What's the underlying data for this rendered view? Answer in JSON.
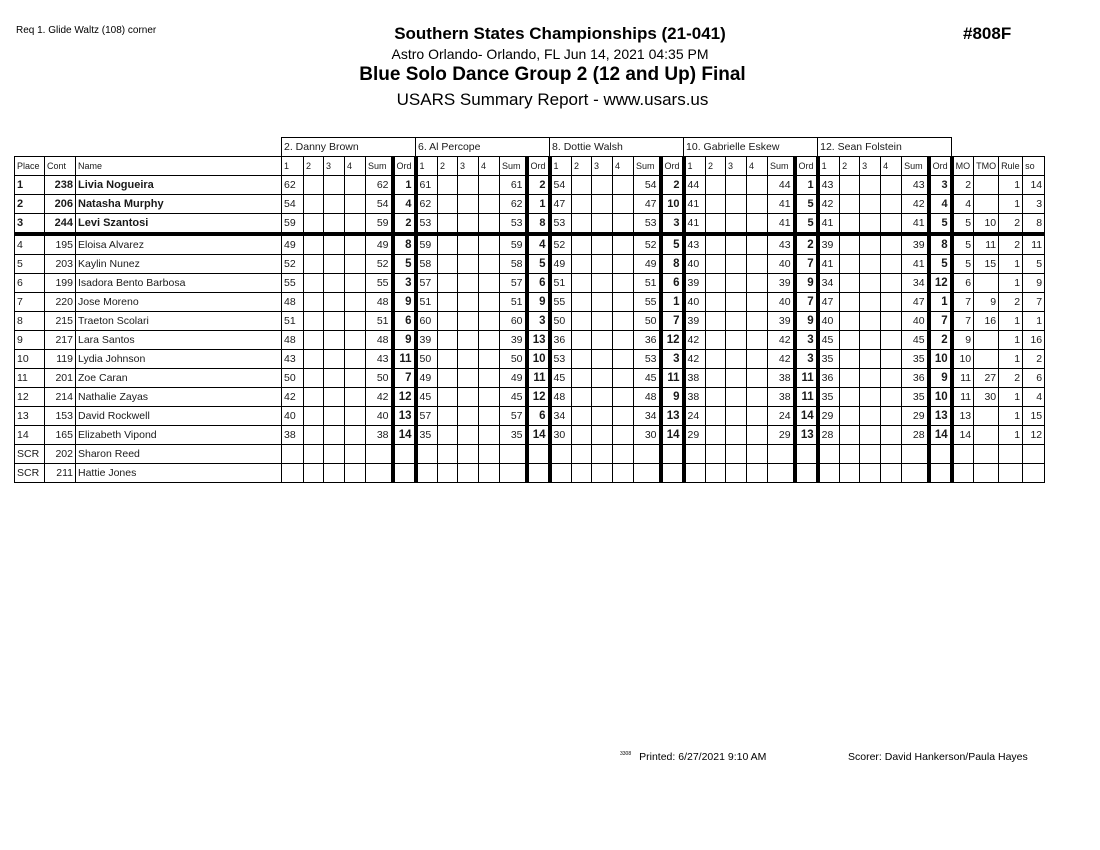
{
  "header": {
    "requirement": "Req  1. Glide Waltz (108) corner",
    "event": "Southern States Championships (21-041)",
    "venue": "Astro Orlando- Orlando, FL  Jun 14, 2021  04:35 PM",
    "group": "Blue Solo Dance Group 2 (12 and Up) Final",
    "report": "USARS Summary Report - www.usars.us",
    "event_number": "#808F"
  },
  "table": {
    "judges": [
      "2.  Danny Brown",
      "6.  Al Percope",
      "8.  Dottie Walsh",
      "10.  Gabrielle Eskew",
      "12.  Sean Folstein"
    ],
    "columns": [
      "Place",
      "Cont",
      "Name"
    ],
    "judge_columns": [
      "1",
      "2",
      "3",
      "4",
      "Sum",
      "Ord"
    ],
    "extra_columns": [
      "MO",
      "TMO",
      "Rule",
      "so"
    ],
    "rows": [
      {
        "place": "1",
        "cont": "238",
        "name": "Livia Nogueira",
        "scores": [
          [
            "62",
            "62",
            "1"
          ],
          [
            "61",
            "61",
            "2"
          ],
          [
            "54",
            "54",
            "2"
          ],
          [
            "44",
            "44",
            "1"
          ],
          [
            "43",
            "43",
            "3"
          ]
        ],
        "mo": "2",
        "tmo": "",
        "rule": "1",
        "so": "14"
      },
      {
        "place": "2",
        "cont": "206",
        "name": "Natasha Murphy",
        "scores": [
          [
            "54",
            "54",
            "4"
          ],
          [
            "62",
            "62",
            "1"
          ],
          [
            "47",
            "47",
            "10"
          ],
          [
            "41",
            "41",
            "5"
          ],
          [
            "42",
            "42",
            "4"
          ]
        ],
        "mo": "4",
        "tmo": "",
        "rule": "1",
        "so": "3"
      },
      {
        "place": "3",
        "cont": "244",
        "name": "Levi Szantosi",
        "scores": [
          [
            "59",
            "59",
            "2"
          ],
          [
            "53",
            "53",
            "8"
          ],
          [
            "53",
            "53",
            "3"
          ],
          [
            "41",
            "41",
            "5"
          ],
          [
            "41",
            "41",
            "5"
          ]
        ],
        "mo": "5",
        "tmo": "10",
        "rule": "2",
        "so": "8"
      },
      {
        "place": "4",
        "cont": "195",
        "name": "Eloisa Alvarez",
        "scores": [
          [
            "49",
            "49",
            "8"
          ],
          [
            "59",
            "59",
            "4"
          ],
          [
            "52",
            "52",
            "5"
          ],
          [
            "43",
            "43",
            "2"
          ],
          [
            "39",
            "39",
            "8"
          ]
        ],
        "mo": "5",
        "tmo": "11",
        "rule": "2",
        "so": "11"
      },
      {
        "place": "5",
        "cont": "203",
        "name": "Kaylin Nunez",
        "scores": [
          [
            "52",
            "52",
            "5"
          ],
          [
            "58",
            "58",
            "5"
          ],
          [
            "49",
            "49",
            "8"
          ],
          [
            "40",
            "40",
            "7"
          ],
          [
            "41",
            "41",
            "5"
          ]
        ],
        "mo": "5",
        "tmo": "15",
        "rule": "1",
        "so": "5"
      },
      {
        "place": "6",
        "cont": "199",
        "name": "Isadora Bento Barbosa",
        "scores": [
          [
            "55",
            "55",
            "3"
          ],
          [
            "57",
            "57",
            "6"
          ],
          [
            "51",
            "51",
            "6"
          ],
          [
            "39",
            "39",
            "9"
          ],
          [
            "34",
            "34",
            "12"
          ]
        ],
        "mo": "6",
        "tmo": "",
        "rule": "1",
        "so": "9"
      },
      {
        "place": "7",
        "cont": "220",
        "name": "Jose Moreno",
        "scores": [
          [
            "48",
            "48",
            "9"
          ],
          [
            "51",
            "51",
            "9"
          ],
          [
            "55",
            "55",
            "1"
          ],
          [
            "40",
            "40",
            "7"
          ],
          [
            "47",
            "47",
            "1"
          ]
        ],
        "mo": "7",
        "tmo": "9",
        "rule": "2",
        "so": "7"
      },
      {
        "place": "8",
        "cont": "215",
        "name": "Traeton Scolari",
        "scores": [
          [
            "51",
            "51",
            "6"
          ],
          [
            "60",
            "60",
            "3"
          ],
          [
            "50",
            "50",
            "7"
          ],
          [
            "39",
            "39",
            "9"
          ],
          [
            "40",
            "40",
            "7"
          ]
        ],
        "mo": "7",
        "tmo": "16",
        "rule": "1",
        "so": "1"
      },
      {
        "place": "9",
        "cont": "217",
        "name": "Lara Santos",
        "scores": [
          [
            "48",
            "48",
            "9"
          ],
          [
            "39",
            "39",
            "13"
          ],
          [
            "36",
            "36",
            "12"
          ],
          [
            "42",
            "42",
            "3"
          ],
          [
            "45",
            "45",
            "2"
          ]
        ],
        "mo": "9",
        "tmo": "",
        "rule": "1",
        "so": "16"
      },
      {
        "place": "10",
        "cont": "119",
        "name": "Lydia Johnson",
        "scores": [
          [
            "43",
            "43",
            "11"
          ],
          [
            "50",
            "50",
            "10"
          ],
          [
            "53",
            "53",
            "3"
          ],
          [
            "42",
            "42",
            "3"
          ],
          [
            "35",
            "35",
            "10"
          ]
        ],
        "mo": "10",
        "tmo": "",
        "rule": "1",
        "so": "2"
      },
      {
        "place": "11",
        "cont": "201",
        "name": "Zoe Caran",
        "scores": [
          [
            "50",
            "50",
            "7"
          ],
          [
            "49",
            "49",
            "11"
          ],
          [
            "45",
            "45",
            "11"
          ],
          [
            "38",
            "38",
            "11"
          ],
          [
            "36",
            "36",
            "9"
          ]
        ],
        "mo": "11",
        "tmo": "27",
        "rule": "2",
        "so": "6"
      },
      {
        "place": "12",
        "cont": "214",
        "name": "Nathalie Zayas",
        "scores": [
          [
            "42",
            "42",
            "12"
          ],
          [
            "45",
            "45",
            "12"
          ],
          [
            "48",
            "48",
            "9"
          ],
          [
            "38",
            "38",
            "11"
          ],
          [
            "35",
            "35",
            "10"
          ]
        ],
        "mo": "11",
        "tmo": "30",
        "rule": "1",
        "so": "4"
      },
      {
        "place": "13",
        "cont": "153",
        "name": "David Rockwell",
        "scores": [
          [
            "40",
            "40",
            "13"
          ],
          [
            "57",
            "57",
            "6"
          ],
          [
            "34",
            "34",
            "13"
          ],
          [
            "24",
            "24",
            "14"
          ],
          [
            "29",
            "29",
            "13"
          ]
        ],
        "mo": "13",
        "tmo": "",
        "rule": "1",
        "so": "15"
      },
      {
        "place": "14",
        "cont": "165",
        "name": "Elizabeth Vipond",
        "scores": [
          [
            "38",
            "38",
            "14"
          ],
          [
            "35",
            "35",
            "14"
          ],
          [
            "30",
            "30",
            "14"
          ],
          [
            "29",
            "29",
            "13"
          ],
          [
            "28",
            "28",
            "14"
          ]
        ],
        "mo": "14",
        "tmo": "",
        "rule": "1",
        "so": "12"
      },
      {
        "place": "SCR",
        "cont": "202",
        "name": "Sharon Reed",
        "scores": [
          [
            "",
            "",
            ""
          ],
          [
            "",
            "",
            ""
          ],
          [
            "",
            "",
            ""
          ],
          [
            "",
            "",
            ""
          ],
          [
            "",
            "",
            ""
          ]
        ],
        "mo": "",
        "tmo": "",
        "rule": "",
        "so": ""
      },
      {
        "place": "SCR",
        "cont": "211",
        "name": "Hattie Jones",
        "scores": [
          [
            "",
            "",
            ""
          ],
          [
            "",
            "",
            ""
          ],
          [
            "",
            "",
            ""
          ],
          [
            "",
            "",
            ""
          ],
          [
            "",
            "",
            ""
          ]
        ],
        "mo": "",
        "tmo": "",
        "rule": "",
        "so": ""
      }
    ]
  },
  "footer": {
    "code": "3308",
    "printed": "Printed:  6/27/2021  9:10 AM",
    "scorer": "Scorer:   David Hankerson/Paula Hayes"
  }
}
